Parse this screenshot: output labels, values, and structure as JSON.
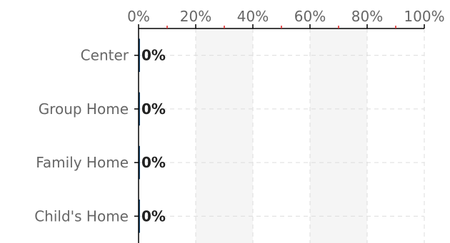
{
  "chart_data": {
    "type": "bar",
    "orientation": "horizontal",
    "categories": [
      "Center",
      "Group Home",
      "Family Home",
      "Child's Home"
    ],
    "values": [
      0,
      0,
      0,
      0
    ],
    "value_labels": [
      "0%",
      "0%",
      "0%",
      "0%"
    ],
    "xlim": [
      0,
      100
    ],
    "x_ticks": [
      0,
      20,
      40,
      60,
      80,
      100
    ],
    "x_tick_labels": [
      "0%",
      "20%",
      "40%",
      "60%",
      "80%",
      "100%"
    ],
    "x_minor_ticks": [
      10,
      30,
      50,
      70,
      90
    ],
    "x_axis_position": "top",
    "grid": true,
    "legend": "none",
    "title": "",
    "xlabel": "",
    "ylabel": "",
    "colors": {
      "bar": "#1f4e79",
      "axis": "#000000",
      "grid": "#dddddd",
      "band": "#f5f5f5",
      "minor_tick": "#e02020"
    }
  }
}
